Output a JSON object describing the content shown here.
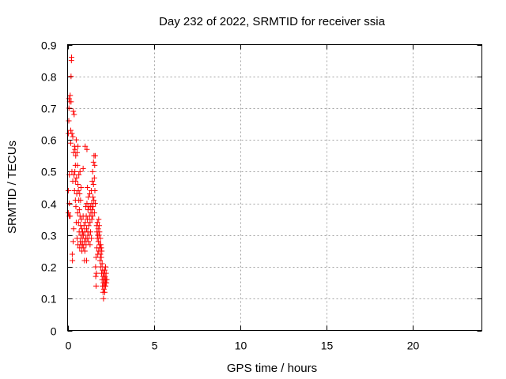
{
  "chart_data": {
    "type": "scatter",
    "title": "Day 232 of 2022, SRMTID for receiver ssia",
    "xlabel": "GPS time / hours",
    "ylabel": "SRMTID / TECUs",
    "xlim": [
      0,
      24
    ],
    "ylim": [
      0,
      0.9
    ],
    "xticks": [
      0,
      5,
      10,
      15,
      20
    ],
    "yticks": [
      0,
      0.1,
      0.2,
      0.3,
      0.4,
      0.5,
      0.6,
      0.7,
      0.8,
      0.9
    ],
    "xtick_labels": [
      "0",
      "5",
      "10",
      "15",
      "20"
    ],
    "ytick_labels": [
      "0",
      "0.1",
      "0.2",
      "0.3",
      "0.4",
      "0.5",
      "0.6",
      "0.7",
      "0.8",
      "0.9"
    ],
    "grid": true,
    "marker": "+",
    "color": "#ff0000",
    "series": [
      {
        "name": "SRMTID",
        "points": [
          [
            0.05,
            0.37
          ],
          [
            0.05,
            0.44
          ],
          [
            0.05,
            0.62
          ],
          [
            0.07,
            0.66
          ],
          [
            0.08,
            0.7
          ],
          [
            0.08,
            0.73
          ],
          [
            0.1,
            0.36
          ],
          [
            0.1,
            0.4
          ],
          [
            0.1,
            0.49
          ],
          [
            0.12,
            0.72
          ],
          [
            0.15,
            0.74
          ],
          [
            0.15,
            0.36
          ],
          [
            0.18,
            0.59
          ],
          [
            0.18,
            0.63
          ],
          [
            0.2,
            0.72
          ],
          [
            0.2,
            0.8
          ],
          [
            0.22,
            0.85
          ],
          [
            0.23,
            0.86
          ],
          [
            0.25,
            0.62
          ],
          [
            0.25,
            0.5
          ],
          [
            0.27,
            0.24
          ],
          [
            0.28,
            0.22
          ],
          [
            0.3,
            0.47
          ],
          [
            0.3,
            0.61
          ],
          [
            0.32,
            0.28
          ],
          [
            0.33,
            0.69
          ],
          [
            0.35,
            0.32
          ],
          [
            0.35,
            0.56
          ],
          [
            0.37,
            0.49
          ],
          [
            0.38,
            0.68
          ],
          [
            0.4,
            0.58
          ],
          [
            0.4,
            0.44
          ],
          [
            0.42,
            0.5
          ],
          [
            0.43,
            0.57
          ],
          [
            0.45,
            0.52
          ],
          [
            0.45,
            0.47
          ],
          [
            0.47,
            0.55
          ],
          [
            0.48,
            0.39
          ],
          [
            0.5,
            0.6
          ],
          [
            0.5,
            0.34
          ],
          [
            0.52,
            0.48
          ],
          [
            0.53,
            0.43
          ],
          [
            0.55,
            0.56
          ],
          [
            0.55,
            0.29
          ],
          [
            0.57,
            0.52
          ],
          [
            0.58,
            0.37
          ],
          [
            0.6,
            0.46
          ],
          [
            0.6,
            0.27
          ],
          [
            0.62,
            0.44
          ],
          [
            0.63,
            0.34
          ],
          [
            0.65,
            0.41
          ],
          [
            0.65,
            0.49
          ],
          [
            0.67,
            0.31
          ],
          [
            0.68,
            0.38
          ],
          [
            0.7,
            0.43
          ],
          [
            0.7,
            0.26
          ],
          [
            0.72,
            0.36
          ],
          [
            0.73,
            0.28
          ],
          [
            0.75,
            0.33
          ],
          [
            0.75,
            0.41
          ],
          [
            0.77,
            0.3
          ],
          [
            0.78,
            0.45
          ],
          [
            0.8,
            0.27
          ],
          [
            0.8,
            0.35
          ],
          [
            0.82,
            0.32
          ],
          [
            0.83,
            0.25
          ],
          [
            0.85,
            0.29
          ],
          [
            0.87,
            0.31
          ],
          [
            0.88,
            0.27
          ],
          [
            0.9,
            0.36
          ],
          [
            0.92,
            0.3
          ],
          [
            0.93,
            0.26
          ],
          [
            0.95,
            0.33
          ],
          [
            0.97,
            0.28
          ],
          [
            0.98,
            0.22
          ],
          [
            1.0,
            0.31
          ],
          [
            1.0,
            0.25
          ],
          [
            1.02,
            0.58
          ],
          [
            1.03,
            0.34
          ],
          [
            1.05,
            0.29
          ],
          [
            1.05,
            0.39
          ],
          [
            1.07,
            0.27
          ],
          [
            1.08,
            0.36
          ],
          [
            1.1,
            0.22
          ],
          [
            1.1,
            0.32
          ],
          [
            1.12,
            0.4
          ],
          [
            1.13,
            0.29
          ],
          [
            1.15,
            0.35
          ],
          [
            1.15,
            0.45
          ],
          [
            1.17,
            0.31
          ],
          [
            1.18,
            0.38
          ],
          [
            1.2,
            0.28
          ],
          [
            1.2,
            0.42
          ],
          [
            1.22,
            0.33
          ],
          [
            1.23,
            0.39
          ],
          [
            1.25,
            0.3
          ],
          [
            1.27,
            0.36
          ],
          [
            1.28,
            0.43
          ],
          [
            1.3,
            0.34
          ],
          [
            1.3,
            0.27
          ],
          [
            1.32,
            0.39
          ],
          [
            1.33,
            0.31
          ],
          [
            1.35,
            0.37
          ],
          [
            1.37,
            0.44
          ],
          [
            1.38,
            0.29
          ],
          [
            1.4,
            0.35
          ],
          [
            1.4,
            0.4
          ],
          [
            1.42,
            0.38
          ],
          [
            1.43,
            0.47
          ],
          [
            1.45,
            0.36
          ],
          [
            1.45,
            0.5
          ],
          [
            1.47,
            0.42
          ],
          [
            1.48,
            0.39
          ],
          [
            1.5,
            0.53
          ],
          [
            1.5,
            0.46
          ],
          [
            1.52,
            0.41
          ],
          [
            1.53,
            0.55
          ],
          [
            1.55,
            0.48
          ],
          [
            1.55,
            0.37
          ],
          [
            1.57,
            0.52
          ],
          [
            1.58,
            0.44
          ],
          [
            1.6,
            0.4
          ],
          [
            1.6,
            0.55
          ],
          [
            1.62,
            0.2
          ],
          [
            1.63,
            0.17
          ],
          [
            1.65,
            0.14
          ],
          [
            1.65,
            0.23
          ],
          [
            1.67,
            0.18
          ],
          [
            1.68,
            0.33
          ],
          [
            1.7,
            0.31
          ],
          [
            1.7,
            0.26
          ],
          [
            1.72,
            0.29
          ],
          [
            1.73,
            0.34
          ],
          [
            1.75,
            0.3
          ],
          [
            1.75,
            0.24
          ],
          [
            1.77,
            0.32
          ],
          [
            1.78,
            0.28
          ],
          [
            1.8,
            0.25
          ],
          [
            1.8,
            0.35
          ],
          [
            1.82,
            0.3
          ],
          [
            1.83,
            0.33
          ],
          [
            1.85,
            0.27
          ],
          [
            1.85,
            0.31
          ],
          [
            1.87,
            0.26
          ],
          [
            1.88,
            0.22
          ],
          [
            1.9,
            0.29
          ],
          [
            1.9,
            0.24
          ],
          [
            1.92,
            0.27
          ],
          [
            1.93,
            0.2
          ],
          [
            1.95,
            0.26
          ],
          [
            1.95,
            0.23
          ],
          [
            1.97,
            0.18
          ],
          [
            1.98,
            0.25
          ],
          [
            2.0,
            0.21
          ],
          [
            2.0,
            0.16
          ],
          [
            2.02,
            0.14
          ],
          [
            2.03,
            0.19
          ],
          [
            2.05,
            0.12
          ],
          [
            2.05,
            0.17
          ],
          [
            2.07,
            0.15
          ],
          [
            2.08,
            0.1
          ],
          [
            2.1,
            0.13
          ],
          [
            2.1,
            0.18
          ],
          [
            2.12,
            0.16
          ],
          [
            2.13,
            0.14
          ],
          [
            2.15,
            0.19
          ],
          [
            2.15,
            0.12
          ],
          [
            2.17,
            0.17
          ],
          [
            2.18,
            0.15
          ],
          [
            2.2,
            0.2
          ],
          [
            2.2,
            0.14
          ],
          [
            2.22,
            0.16
          ],
          [
            2.23,
            0.18
          ],
          [
            2.25,
            0.15
          ],
          [
            2.27,
            0.16
          ],
          [
            0.6,
            0.58
          ],
          [
            0.45,
            0.41
          ],
          [
            1.12,
            0.57
          ],
          [
            0.9,
            0.51
          ],
          [
            0.72,
            0.5
          ]
        ]
      }
    ]
  }
}
